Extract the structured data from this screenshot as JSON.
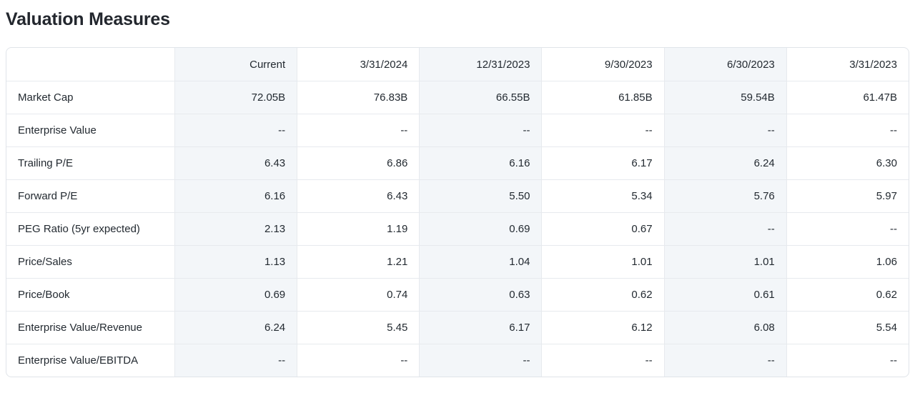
{
  "page": {
    "title": "Valuation Measures"
  },
  "colors": {
    "text": "#232a31",
    "title": "#23272e",
    "column_stripe": "#f3f6f9",
    "outer_border": "#e0e4e9",
    "grid_line": "#e7eaee",
    "background": "#ffffff"
  },
  "table": {
    "columns": [
      "",
      "Current",
      "3/31/2024",
      "12/31/2023",
      "9/30/2023",
      "6/30/2023",
      "3/31/2023"
    ],
    "rows": [
      {
        "label": "Market Cap",
        "values": [
          "72.05B",
          "76.83B",
          "66.55B",
          "61.85B",
          "59.54B",
          "61.47B"
        ]
      },
      {
        "label": "Enterprise Value",
        "values": [
          "--",
          "--",
          "--",
          "--",
          "--",
          "--"
        ]
      },
      {
        "label": "Trailing P/E",
        "values": [
          "6.43",
          "6.86",
          "6.16",
          "6.17",
          "6.24",
          "6.30"
        ]
      },
      {
        "label": "Forward P/E",
        "values": [
          "6.16",
          "6.43",
          "5.50",
          "5.34",
          "5.76",
          "5.97"
        ]
      },
      {
        "label": "PEG Ratio (5yr expected)",
        "values": [
          "2.13",
          "1.19",
          "0.69",
          "0.67",
          "--",
          "--"
        ]
      },
      {
        "label": "Price/Sales",
        "values": [
          "1.13",
          "1.21",
          "1.04",
          "1.01",
          "1.01",
          "1.06"
        ]
      },
      {
        "label": "Price/Book",
        "values": [
          "0.69",
          "0.74",
          "0.63",
          "0.62",
          "0.61",
          "0.62"
        ]
      },
      {
        "label": "Enterprise Value/Revenue",
        "values": [
          "6.24",
          "5.45",
          "6.17",
          "6.12",
          "6.08",
          "5.54"
        ]
      },
      {
        "label": "Enterprise Value/EBITDA",
        "values": [
          "--",
          "--",
          "--",
          "--",
          "--",
          "--"
        ]
      }
    ]
  }
}
